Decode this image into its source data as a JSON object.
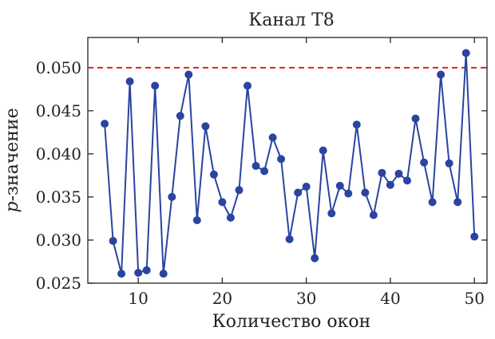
{
  "chart_data": {
    "type": "line",
    "title": "Канал Т8",
    "xlabel": "Количество окон",
    "ylabel_italic": "p",
    "ylabel_rest": "-значение",
    "xlim": [
      4,
      51.5
    ],
    "ylim": [
      0.025,
      0.0535
    ],
    "xticks": [
      10,
      20,
      30,
      40,
      50
    ],
    "xtick_labels": [
      "10",
      "20",
      "30",
      "40",
      "50"
    ],
    "yticks": [
      0.025,
      0.03,
      0.035,
      0.04,
      0.045,
      0.05
    ],
    "ytick_labels": [
      "0.025",
      "0.030",
      "0.035",
      "0.040",
      "0.045",
      "0.050"
    ],
    "threshold": 0.05,
    "grid": false,
    "colors": {
      "series": "#2a44a0",
      "threshold": "#e02020",
      "axis": "#222222"
    },
    "series": [
      {
        "x": [
          6,
          7,
          8,
          9,
          10,
          11,
          12,
          13,
          14,
          15,
          16,
          17,
          18,
          19,
          20,
          21,
          22,
          23,
          24,
          25,
          26,
          27,
          28,
          29,
          30,
          31,
          32,
          33,
          34,
          35,
          36,
          37,
          38,
          39,
          40,
          41,
          42,
          43,
          44,
          45,
          46,
          47,
          48,
          49,
          50
        ],
        "y": [
          0.0435,
          0.0299,
          0.0261,
          0.0484,
          0.0262,
          0.0265,
          0.0479,
          0.0261,
          0.035,
          0.0444,
          0.0492,
          0.0323,
          0.0432,
          0.0376,
          0.0344,
          0.0326,
          0.0358,
          0.0479,
          0.0386,
          0.038,
          0.0419,
          0.0394,
          0.0301,
          0.0355,
          0.0362,
          0.0279,
          0.0404,
          0.0331,
          0.0363,
          0.0354,
          0.0434,
          0.0355,
          0.0329,
          0.0378,
          0.0364,
          0.0377,
          0.0369,
          0.0441,
          0.039,
          0.0344,
          0.0492,
          0.0389,
          0.0344,
          0.0517,
          0.0304
        ]
      }
    ]
  }
}
